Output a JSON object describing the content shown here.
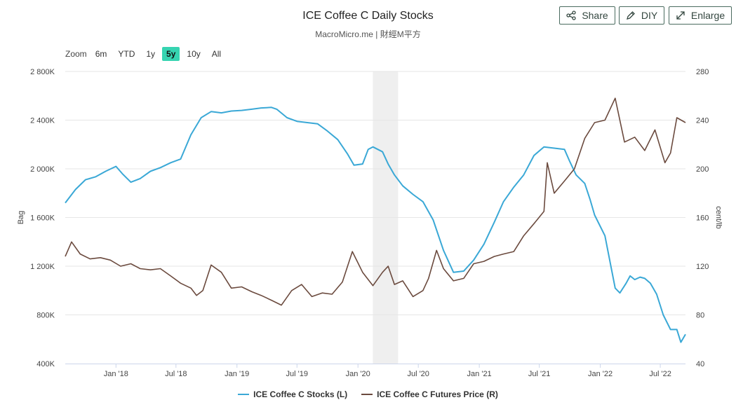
{
  "header": {
    "title": "ICE Coffee C Daily Stocks",
    "subtitle": "MacroMicro.me | 財經M平方"
  },
  "toolbar": {
    "share_label": "Share",
    "diy_label": "DIY",
    "enlarge_label": "Enlarge"
  },
  "zoom": {
    "label": "Zoom",
    "options": [
      "6m",
      "YTD",
      "1y",
      "5y",
      "10y",
      "All"
    ],
    "active": "5y"
  },
  "colors": {
    "stocks": "#3aa8d6",
    "price": "#6b4a3e",
    "recession_band": "#efefef",
    "grid": "#e6e6e6",
    "zoom_active": "#36d4b1",
    "button_border": "#4a6b5f"
  },
  "chart_data": {
    "type": "line",
    "x_type": "date",
    "x_range": [
      "2017-08-01",
      "2022-09-15"
    ],
    "x_ticks": [
      {
        "date": "2018-01-01",
        "label": "Jan '18"
      },
      {
        "date": "2018-07-01",
        "label": "Jul '18"
      },
      {
        "date": "2019-01-01",
        "label": "Jan '19"
      },
      {
        "date": "2019-07-01",
        "label": "Jul '19"
      },
      {
        "date": "2020-01-01",
        "label": "Jan '20"
      },
      {
        "date": "2020-07-01",
        "label": "Jul '20"
      },
      {
        "date": "2021-01-01",
        "label": "Jan '21"
      },
      {
        "date": "2021-07-01",
        "label": "Jul '21"
      },
      {
        "date": "2022-01-01",
        "label": "Jan '22"
      },
      {
        "date": "2022-07-01",
        "label": "Jul '22"
      }
    ],
    "y_left": {
      "label": "Bag",
      "min": 400000,
      "max": 2800000,
      "ticks": [
        400000,
        800000,
        1200000,
        1600000,
        2000000,
        2400000,
        2800000
      ],
      "tick_labels": [
        "400K",
        "800K",
        "1 200K",
        "1 600K",
        "2 000K",
        "2 400K",
        "2 800K"
      ]
    },
    "y_right": {
      "label": "cent/lb",
      "min": 40,
      "max": 280,
      "ticks": [
        40,
        80,
        120,
        160,
        200,
        240,
        280
      ],
      "tick_labels": [
        "40",
        "80",
        "120",
        "160",
        "200",
        "240",
        "280"
      ]
    },
    "grid": true,
    "bands": [
      {
        "from": "2020-02-15",
        "to": "2020-05-01"
      }
    ],
    "legend_position": "bottom-center",
    "series": [
      {
        "name": "ICE Coffee C Stocks (L)",
        "axis": "left",
        "points": [
          [
            "2017-08-01",
            1720000
          ],
          [
            "2017-09-01",
            1830000
          ],
          [
            "2017-10-01",
            1910000
          ],
          [
            "2017-11-01",
            1935000
          ],
          [
            "2017-12-01",
            1980000
          ],
          [
            "2018-01-01",
            2020000
          ],
          [
            "2018-01-20",
            1960000
          ],
          [
            "2018-02-15",
            1890000
          ],
          [
            "2018-03-15",
            1920000
          ],
          [
            "2018-04-15",
            1980000
          ],
          [
            "2018-05-15",
            2010000
          ],
          [
            "2018-06-15",
            2050000
          ],
          [
            "2018-07-15",
            2080000
          ],
          [
            "2018-08-15",
            2280000
          ],
          [
            "2018-09-15",
            2420000
          ],
          [
            "2018-10-15",
            2470000
          ],
          [
            "2018-11-15",
            2460000
          ],
          [
            "2018-12-15",
            2475000
          ],
          [
            "2019-01-15",
            2480000
          ],
          [
            "2019-02-15",
            2490000
          ],
          [
            "2019-03-15",
            2500000
          ],
          [
            "2019-04-15",
            2505000
          ],
          [
            "2019-05-01",
            2490000
          ],
          [
            "2019-06-01",
            2420000
          ],
          [
            "2019-07-01",
            2390000
          ],
          [
            "2019-08-01",
            2380000
          ],
          [
            "2019-09-01",
            2370000
          ],
          [
            "2019-10-01",
            2310000
          ],
          [
            "2019-11-01",
            2240000
          ],
          [
            "2019-12-01",
            2120000
          ],
          [
            "2019-12-20",
            2030000
          ],
          [
            "2020-01-15",
            2040000
          ],
          [
            "2020-02-01",
            2160000
          ],
          [
            "2020-02-15",
            2180000
          ],
          [
            "2020-03-15",
            2140000
          ],
          [
            "2020-04-01",
            2040000
          ],
          [
            "2020-04-20",
            1950000
          ],
          [
            "2020-05-15",
            1860000
          ],
          [
            "2020-06-15",
            1790000
          ],
          [
            "2020-07-15",
            1730000
          ],
          [
            "2020-08-15",
            1580000
          ],
          [
            "2020-09-15",
            1330000
          ],
          [
            "2020-10-15",
            1150000
          ],
          [
            "2020-11-15",
            1160000
          ],
          [
            "2020-12-15",
            1250000
          ],
          [
            "2021-01-15",
            1380000
          ],
          [
            "2021-02-15",
            1560000
          ],
          [
            "2021-03-15",
            1730000
          ],
          [
            "2021-04-15",
            1850000
          ],
          [
            "2021-05-15",
            1950000
          ],
          [
            "2021-06-15",
            2110000
          ],
          [
            "2021-07-15",
            2180000
          ],
          [
            "2021-08-15",
            2170000
          ],
          [
            "2021-09-15",
            2160000
          ],
          [
            "2021-10-01",
            2060000
          ],
          [
            "2021-10-20",
            1950000
          ],
          [
            "2021-11-15",
            1880000
          ],
          [
            "2021-12-01",
            1750000
          ],
          [
            "2021-12-15",
            1620000
          ],
          [
            "2022-01-15",
            1450000
          ],
          [
            "2022-02-15",
            1020000
          ],
          [
            "2022-03-01",
            980000
          ],
          [
            "2022-03-20",
            1060000
          ],
          [
            "2022-04-01",
            1120000
          ],
          [
            "2022-04-15",
            1090000
          ],
          [
            "2022-05-01",
            1110000
          ],
          [
            "2022-05-15",
            1100000
          ],
          [
            "2022-06-01",
            1060000
          ],
          [
            "2022-06-20",
            970000
          ],
          [
            "2022-07-10",
            800000
          ],
          [
            "2022-08-01",
            680000
          ],
          [
            "2022-08-20",
            680000
          ],
          [
            "2022-09-01",
            575000
          ],
          [
            "2022-09-15",
            640000
          ]
        ]
      },
      {
        "name": "ICE Coffee C Futures Price (R)",
        "axis": "right",
        "points": [
          [
            "2017-08-01",
            128
          ],
          [
            "2017-08-20",
            140
          ],
          [
            "2017-09-15",
            130
          ],
          [
            "2017-10-15",
            126
          ],
          [
            "2017-11-15",
            127
          ],
          [
            "2017-12-15",
            125
          ],
          [
            "2018-01-15",
            120
          ],
          [
            "2018-02-15",
            122
          ],
          [
            "2018-03-15",
            118
          ],
          [
            "2018-04-15",
            117
          ],
          [
            "2018-05-15",
            118
          ],
          [
            "2018-06-15",
            112
          ],
          [
            "2018-07-15",
            106
          ],
          [
            "2018-08-15",
            102
          ],
          [
            "2018-09-01",
            96
          ],
          [
            "2018-09-20",
            100
          ],
          [
            "2018-10-15",
            121
          ],
          [
            "2018-11-15",
            115
          ],
          [
            "2018-12-15",
            102
          ],
          [
            "2019-01-15",
            103
          ],
          [
            "2019-02-15",
            99
          ],
          [
            "2019-03-15",
            96
          ],
          [
            "2019-04-15",
            92
          ],
          [
            "2019-05-15",
            88
          ],
          [
            "2019-06-15",
            100
          ],
          [
            "2019-07-15",
            105
          ],
          [
            "2019-08-15",
            95
          ],
          [
            "2019-09-15",
            98
          ],
          [
            "2019-10-15",
            97
          ],
          [
            "2019-11-15",
            107
          ],
          [
            "2019-12-15",
            132
          ],
          [
            "2020-01-15",
            115
          ],
          [
            "2020-02-15",
            104
          ],
          [
            "2020-03-15",
            115
          ],
          [
            "2020-04-01",
            120
          ],
          [
            "2020-04-20",
            105
          ],
          [
            "2020-05-15",
            108
          ],
          [
            "2020-06-15",
            95
          ],
          [
            "2020-07-15",
            100
          ],
          [
            "2020-08-01",
            110
          ],
          [
            "2020-08-25",
            133
          ],
          [
            "2020-09-15",
            118
          ],
          [
            "2020-10-15",
            108
          ],
          [
            "2020-11-15",
            110
          ],
          [
            "2020-12-15",
            122
          ],
          [
            "2021-01-15",
            124
          ],
          [
            "2021-02-15",
            128
          ],
          [
            "2021-03-15",
            130
          ],
          [
            "2021-04-15",
            132
          ],
          [
            "2021-05-15",
            145
          ],
          [
            "2021-06-15",
            155
          ],
          [
            "2021-07-15",
            165
          ],
          [
            "2021-07-25",
            205
          ],
          [
            "2021-08-15",
            180
          ],
          [
            "2021-09-15",
            190
          ],
          [
            "2021-10-15",
            200
          ],
          [
            "2021-11-15",
            225
          ],
          [
            "2021-12-15",
            238
          ],
          [
            "2022-01-15",
            240
          ],
          [
            "2022-02-15",
            258
          ],
          [
            "2022-03-15",
            222
          ],
          [
            "2022-04-15",
            226
          ],
          [
            "2022-05-15",
            215
          ],
          [
            "2022-06-15",
            232
          ],
          [
            "2022-07-15",
            205
          ],
          [
            "2022-08-01",
            213
          ],
          [
            "2022-08-20",
            242
          ],
          [
            "2022-09-15",
            238
          ]
        ]
      }
    ]
  }
}
